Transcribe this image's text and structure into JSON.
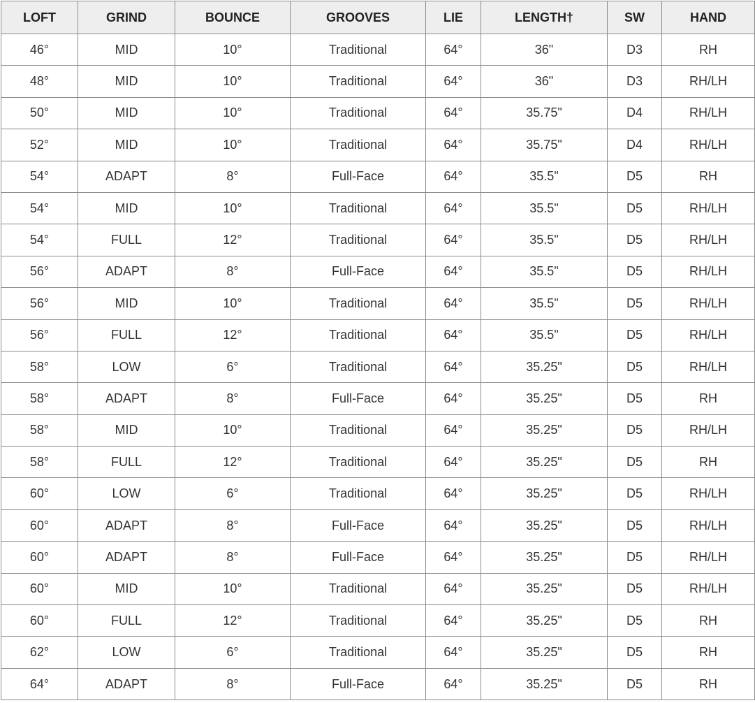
{
  "table": {
    "headers": [
      "LOFT",
      "GRIND",
      "BOUNCE",
      "GROOVES",
      "LIE",
      "LENGTH†",
      "SW",
      "HAND"
    ],
    "rows": [
      [
        "46°",
        "MID",
        "10°",
        "Traditional",
        "64°",
        "36\"",
        "D3",
        "RH"
      ],
      [
        "48°",
        "MID",
        "10°",
        "Traditional",
        "64°",
        "36\"",
        "D3",
        "RH/LH"
      ],
      [
        "50°",
        "MID",
        "10°",
        "Traditional",
        "64°",
        "35.75\"",
        "D4",
        "RH/LH"
      ],
      [
        "52°",
        "MID",
        "10°",
        "Traditional",
        "64°",
        "35.75\"",
        "D4",
        "RH/LH"
      ],
      [
        "54°",
        "ADAPT",
        "8°",
        "Full-Face",
        "64°",
        "35.5\"",
        "D5",
        "RH"
      ],
      [
        "54°",
        "MID",
        "10°",
        "Traditional",
        "64°",
        "35.5\"",
        "D5",
        "RH/LH"
      ],
      [
        "54°",
        "FULL",
        "12°",
        "Traditional",
        "64°",
        "35.5\"",
        "D5",
        "RH/LH"
      ],
      [
        "56°",
        "ADAPT",
        "8°",
        "Full-Face",
        "64°",
        "35.5\"",
        "D5",
        "RH/LH"
      ],
      [
        "56°",
        "MID",
        "10°",
        "Traditional",
        "64°",
        "35.5\"",
        "D5",
        "RH/LH"
      ],
      [
        "56°",
        "FULL",
        "12°",
        "Traditional",
        "64°",
        "35.5\"",
        "D5",
        "RH/LH"
      ],
      [
        "58°",
        "LOW",
        "6°",
        "Traditional",
        "64°",
        "35.25\"",
        "D5",
        "RH/LH"
      ],
      [
        "58°",
        "ADAPT",
        "8°",
        "Full-Face",
        "64°",
        "35.25\"",
        "D5",
        "RH"
      ],
      [
        "58°",
        "MID",
        "10°",
        "Traditional",
        "64°",
        "35.25\"",
        "D5",
        "RH/LH"
      ],
      [
        "58°",
        "FULL",
        "12°",
        "Traditional",
        "64°",
        "35.25\"",
        "D5",
        "RH"
      ],
      [
        "60°",
        "LOW",
        "6°",
        "Traditional",
        "64°",
        "35.25\"",
        "D5",
        "RH/LH"
      ],
      [
        "60°",
        "ADAPT",
        "8°",
        "Full-Face",
        "64°",
        "35.25\"",
        "D5",
        "RH/LH"
      ],
      [
        "60°",
        "ADAPT",
        "8°",
        "Full-Face",
        "64°",
        "35.25\"",
        "D5",
        "RH/LH"
      ],
      [
        "60°",
        "MID",
        "10°",
        "Traditional",
        "64°",
        "35.25\"",
        "D5",
        "RH/LH"
      ],
      [
        "60°",
        "FULL",
        "12°",
        "Traditional",
        "64°",
        "35.25\"",
        "D5",
        "RH"
      ],
      [
        "62°",
        "LOW",
        "6°",
        "Traditional",
        "64°",
        "35.25\"",
        "D5",
        "RH"
      ],
      [
        "64°",
        "ADAPT",
        "8°",
        "Full-Face",
        "64°",
        "35.25\"",
        "D5",
        "RH"
      ]
    ]
  }
}
